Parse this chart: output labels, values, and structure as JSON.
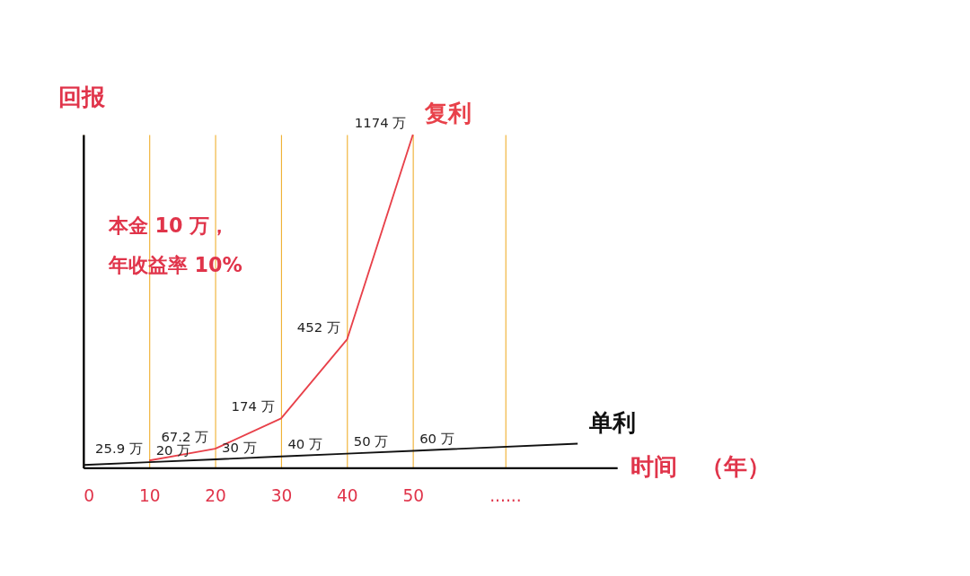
{
  "chart_data": {
    "type": "line",
    "xlabel": "时间　（年）",
    "ylabel": "回报",
    "xlim": [
      0,
      81
    ],
    "xticks": [
      0,
      10,
      20,
      30,
      40,
      50,
      {
        "value": 64,
        "label": "......"
      }
    ],
    "grid": "x",
    "legend": false,
    "marker": "none",
    "line_style": "solid",
    "tick_labels": "x",
    "annotations": [
      "本金 10 万，",
      "年收益率 10%"
    ],
    "series": [
      {
        "name": "复利",
        "type": "line",
        "color": "#e8414a",
        "x": [
          10,
          20,
          30,
          40,
          50
        ],
        "values": [
          25.9,
          67.2,
          174,
          452,
          1174
        ],
        "value_labels": [
          "25.9 万",
          "67.2 万",
          "174 万",
          "452 万",
          "1174 万"
        ]
      },
      {
        "name": "单利",
        "type": "line",
        "color": "#111111",
        "x": [
          0,
          10,
          20,
          30,
          40,
          50,
          75
        ],
        "values": [
          10,
          20,
          30,
          40,
          50,
          60,
          85
        ],
        "value_labels": [
          null,
          "20 万",
          "30 万",
          "40 万",
          "50 万",
          "60 万",
          null
        ]
      }
    ]
  }
}
